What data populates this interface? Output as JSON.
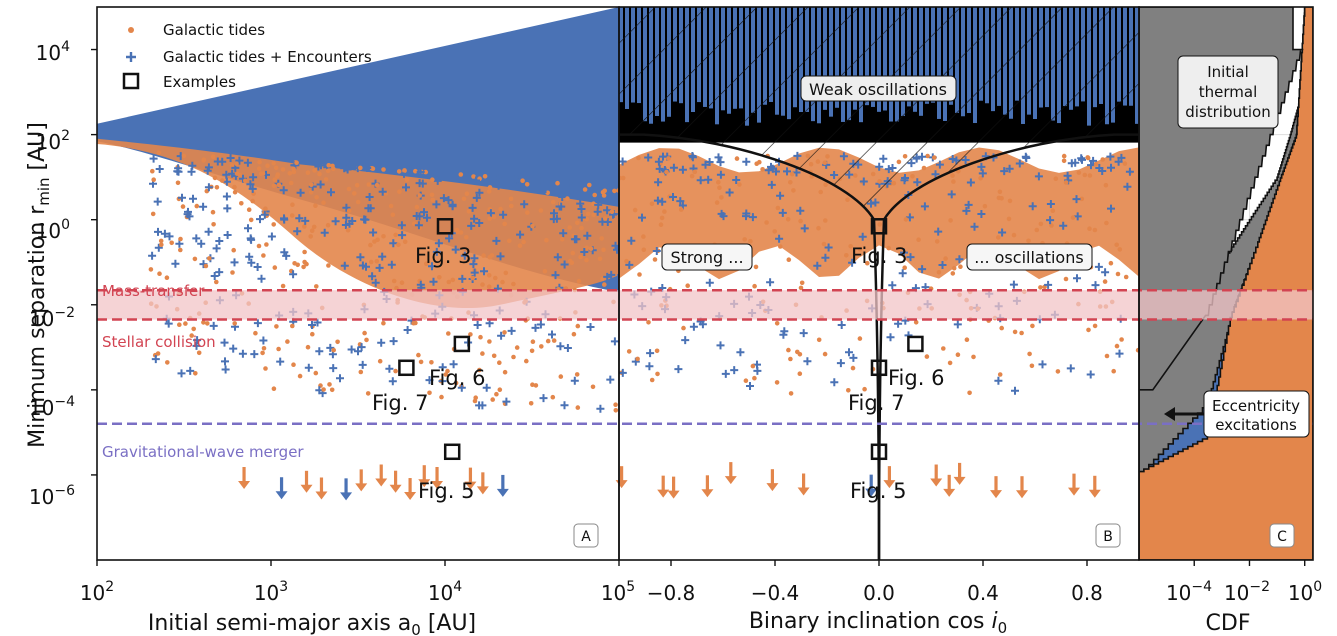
{
  "colors": {
    "tides": "#e3864b",
    "encounters": "#4a72b5",
    "band": "#f2c4c7",
    "band_line": "#d24452",
    "gw_line": "#7a6fc4",
    "initial": "#808080",
    "text": "#111111"
  },
  "ylabel": "Minimum separation r",
  "ylabel_sub": "min",
  "ylabel_unit": " [AU]",
  "ytick_labels": [
    "10",
    "10",
    "10",
    "10",
    "10",
    "10"
  ],
  "ytick_exponents": [
    "4",
    "2",
    "0",
    "−2",
    "−4",
    "−6"
  ],
  "legend": {
    "tides": "Galactic tides",
    "encounters": "Galactic tides + Encounters",
    "examples": "Examples"
  },
  "lines": {
    "mass_transfer": "Mass-transfer",
    "stellar_collision": "Stellar collision",
    "gw_merger": "Gravitational-wave merger"
  },
  "figlabels": [
    "Fig. 3",
    "Fig. 6",
    "Fig. 7",
    "Fig. 5"
  ],
  "panels": {
    "A": {
      "letter": "A",
      "xlabel": "Initial semi-major axis a",
      "xlabel_sub": "0",
      "xlabel_unit": " [AU]",
      "xtick_labels": [
        "10",
        "10",
        "10",
        "10"
      ],
      "xtick_exponents": [
        "2",
        "3",
        "4",
        "5"
      ]
    },
    "B": {
      "letter": "B",
      "xlabel": "Binary inclination cos ",
      "xlabel_i": "i",
      "xlabel_sub": "0",
      "xtick_labels": [
        "−0.8",
        "−0.4",
        "0.0",
        "0.4",
        "0.8"
      ],
      "weak": "Weak oscillations",
      "strong": "Strong ...",
      "oscillations": "... oscillations"
    },
    "C": {
      "letter": "C",
      "xlabel": "CDF",
      "xtick_labels": [
        "10",
        "10",
        "10"
      ],
      "xtick_exponents": [
        "−4",
        "−2",
        "0"
      ],
      "initial": [
        "Initial",
        "thermal",
        "distribution"
      ],
      "ecc": [
        "Eccentricity",
        "excitations"
      ]
    }
  },
  "chart_data": [
    {
      "panel": "A",
      "type": "scatter",
      "xlabel": "Initial semi-major axis a0 [AU]",
      "ylabel": "Minimum separation r_min [AU]",
      "xscale": "log",
      "yscale": "log",
      "xlim": [
        100,
        100000
      ],
      "ylim": [
        1e-08,
        100000.0
      ],
      "series": [
        {
          "name": "Galactic tides",
          "marker": "circle",
          "color": "#e3864b"
        },
        {
          "name": "Galactic tides + Encounters",
          "marker": "plus",
          "color": "#4a72b5"
        }
      ],
      "examples": [
        {
          "label": "Fig. 3",
          "x": 10000,
          "y": 0.7
        },
        {
          "label": "Fig. 6",
          "x": 12500,
          "y": 0.0012
        },
        {
          "label": "Fig. 7",
          "x": 6000,
          "y": 0.00033
        },
        {
          "label": "Fig. 5",
          "x": 11000,
          "y": 3.5e-06
        }
      ],
      "hlines": [
        {
          "label": "Mass-transfer",
          "y": 0.022
        },
        {
          "label": "Stellar collision",
          "y": 0.0045
        },
        {
          "label": "Gravitational-wave merger",
          "y": 1.6e-05
        }
      ],
      "upper_limit_arrows": [
        {
          "x": 700,
          "color": "tides"
        },
        {
          "x": 1150,
          "color": "encounters"
        },
        {
          "x": 1600,
          "color": "tides"
        },
        {
          "x": 1950,
          "color": "tides"
        },
        {
          "x": 2700,
          "color": "encounters"
        },
        {
          "x": 3300,
          "color": "tides"
        },
        {
          "x": 4300,
          "color": "tides"
        },
        {
          "x": 5200,
          "color": "tides"
        },
        {
          "x": 6300,
          "color": "tides"
        },
        {
          "x": 7600,
          "color": "tides"
        },
        {
          "x": 9000,
          "color": "tides"
        },
        {
          "x": 14000,
          "color": "tides"
        },
        {
          "x": 16500,
          "color": "tides"
        },
        {
          "x": 21500,
          "color": "encounters"
        }
      ]
    },
    {
      "panel": "B",
      "type": "scatter",
      "xlabel": "Binary inclination cos i0",
      "xlim": [
        -1,
        1
      ],
      "ylim": [
        1e-08,
        100000.0
      ],
      "regions": [
        "Weak oscillations",
        "Strong ...",
        "... oscillations"
      ],
      "examples": [
        {
          "label": "Fig. 3",
          "x": 0.0,
          "y": 0.7
        },
        {
          "label": "Fig. 6",
          "x": 0.14,
          "y": 0.0012
        },
        {
          "label": "Fig. 7",
          "x": 0.0,
          "y": 0.00033
        },
        {
          "label": "Fig. 5",
          "x": 0.0,
          "y": 3.5e-06
        }
      ],
      "upper_limit_arrows": [
        {
          "x": -0.99,
          "color": "tides"
        },
        {
          "x": -0.83,
          "color": "tides"
        },
        {
          "x": -0.79,
          "color": "tides"
        },
        {
          "x": -0.66,
          "color": "tides"
        },
        {
          "x": -0.57,
          "color": "tides"
        },
        {
          "x": -0.41,
          "color": "tides"
        },
        {
          "x": -0.29,
          "color": "tides"
        },
        {
          "x": -0.03,
          "color": "encounters"
        },
        {
          "x": 0.04,
          "color": "tides"
        },
        {
          "x": 0.22,
          "color": "tides"
        },
        {
          "x": 0.27,
          "color": "tides"
        },
        {
          "x": 0.31,
          "color": "tides"
        },
        {
          "x": 0.45,
          "color": "tides"
        },
        {
          "x": 0.55,
          "color": "tides"
        },
        {
          "x": 0.75,
          "color": "tides"
        },
        {
          "x": 0.83,
          "color": "tides"
        }
      ]
    },
    {
      "panel": "C",
      "type": "line",
      "xlabel": "CDF",
      "xscale": "log",
      "xlim": [
        1e-06,
        2
      ],
      "ylim": [
        1e-08,
        100000.0
      ],
      "series": [
        {
          "name": "Initial thermal distribution",
          "color": "#808080",
          "points": [
            [
              1e-06,
              0.0002
            ],
            [
              1e-05,
              0.002
            ],
            [
              0.001,
              0.1
            ],
            [
              0.01,
              1
            ],
            [
              0.1,
              10
            ],
            [
              0.3,
              100
            ],
            [
              0.8,
              1000
            ],
            [
              1,
              100000
            ]
          ]
        },
        {
          "name": "Galactic tides + Encounters",
          "color": "#4a72b5",
          "points": [
            [
              1e-06,
              1e-06
            ],
            [
              0.0003,
              5e-05
            ],
            [
              0.003,
              0.01
            ],
            [
              0.03,
              0.5
            ],
            [
              0.15,
              10
            ],
            [
              0.5,
              100
            ],
            [
              1,
              100000
            ]
          ]
        },
        {
          "name": "Galactic tides",
          "color": "#e3864b",
          "points": [
            [
              1e-06,
              1.2e-06
            ],
            [
              0.0003,
              8e-06
            ],
            [
              0.002,
              0.005
            ],
            [
              0.02,
              0.3
            ],
            [
              0.12,
              8
            ],
            [
              0.5,
              100
            ],
            [
              1,
              100000
            ]
          ]
        }
      ]
    }
  ]
}
